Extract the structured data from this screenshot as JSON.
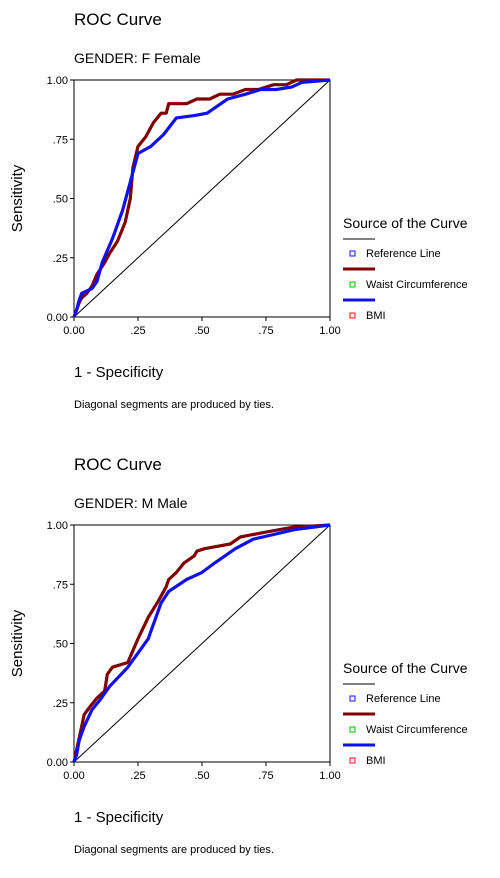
{
  "footnote": "Diagonal segments are produced by ties.",
  "legend_title": "Source of the Curve",
  "colors": {
    "waist": "#800000",
    "bmi": "#1010ee",
    "reference": "#000000"
  },
  "chart_data": [
    {
      "type": "line",
      "title": "ROC Curve",
      "subtitle": "GENDER:  F   Female",
      "xlabel": "1 - Specificity",
      "ylabel": "Sensitivity",
      "xlim": [
        0,
        1
      ],
      "ylim": [
        0,
        1
      ],
      "xticks": [
        "0.00",
        ".25",
        ".50",
        ".75",
        "1.00"
      ],
      "yticks": [
        "0.00",
        ".25",
        ".50",
        ".75",
        "1.00"
      ],
      "legend": [
        "Reference Line",
        "Waist Circumference",
        "BMI"
      ],
      "series": [
        {
          "name": "Waist Circumference",
          "x": [
            0,
            0.01,
            0.02,
            0.03,
            0.05,
            0.07,
            0.09,
            0.12,
            0.14,
            0.17,
            0.2,
            0.22,
            0.23,
            0.25,
            0.28,
            0.31,
            0.34,
            0.36,
            0.37,
            0.4,
            0.44,
            0.48,
            0.53,
            0.57,
            0.62,
            0.67,
            0.72,
            0.78,
            0.83,
            0.87,
            0.9,
            1.0
          ],
          "y": [
            0,
            0.03,
            0.06,
            0.08,
            0.1,
            0.13,
            0.18,
            0.23,
            0.27,
            0.32,
            0.4,
            0.5,
            0.63,
            0.72,
            0.76,
            0.82,
            0.86,
            0.86,
            0.9,
            0.9,
            0.9,
            0.92,
            0.92,
            0.94,
            0.94,
            0.96,
            0.96,
            0.98,
            0.98,
            1.0,
            1.0,
            1.0
          ]
        },
        {
          "name": "BMI",
          "x": [
            0,
            0.01,
            0.02,
            0.03,
            0.05,
            0.07,
            0.09,
            0.11,
            0.15,
            0.19,
            0.22,
            0.25,
            0.3,
            0.35,
            0.4,
            0.47,
            0.52,
            0.6,
            0.67,
            0.73,
            0.79,
            0.85,
            0.89,
            1.0
          ],
          "y": [
            0,
            0.03,
            0.07,
            0.1,
            0.11,
            0.12,
            0.15,
            0.23,
            0.33,
            0.45,
            0.57,
            0.69,
            0.72,
            0.77,
            0.84,
            0.85,
            0.86,
            0.92,
            0.94,
            0.96,
            0.96,
            0.97,
            0.99,
            1.0
          ]
        }
      ]
    },
    {
      "type": "line",
      "title": "ROC Curve",
      "subtitle": "GENDER:  M   Male",
      "xlabel": "1 - Specificity",
      "ylabel": "Sensitivity",
      "xlim": [
        0,
        1
      ],
      "ylim": [
        0,
        1
      ],
      "xticks": [
        "0.00",
        ".25",
        ".50",
        ".75",
        "1.00"
      ],
      "yticks": [
        "0.00",
        ".25",
        ".50",
        ".75",
        "1.00"
      ],
      "legend": [
        "Reference Line",
        "Waist Circumference",
        "BMI"
      ],
      "series": [
        {
          "name": "Waist Circumference",
          "x": [
            0,
            0.01,
            0.02,
            0.03,
            0.04,
            0.06,
            0.09,
            0.12,
            0.13,
            0.15,
            0.21,
            0.25,
            0.29,
            0.33,
            0.36,
            0.37,
            0.4,
            0.43,
            0.47,
            0.48,
            0.51,
            0.56,
            0.61,
            0.65,
            0.75,
            0.85,
            1.0
          ],
          "y": [
            0,
            0.05,
            0.1,
            0.15,
            0.2,
            0.23,
            0.27,
            0.3,
            0.37,
            0.4,
            0.42,
            0.52,
            0.61,
            0.68,
            0.74,
            0.77,
            0.8,
            0.84,
            0.87,
            0.89,
            0.9,
            0.91,
            0.92,
            0.95,
            0.97,
            0.99,
            1.0
          ]
        },
        {
          "name": "BMI",
          "x": [
            0,
            0.01,
            0.02,
            0.04,
            0.07,
            0.1,
            0.14,
            0.21,
            0.29,
            0.34,
            0.37,
            0.44,
            0.5,
            0.55,
            0.63,
            0.7,
            0.78,
            0.86,
            1.0
          ],
          "y": [
            0,
            0.03,
            0.09,
            0.15,
            0.22,
            0.26,
            0.32,
            0.4,
            0.52,
            0.67,
            0.72,
            0.77,
            0.8,
            0.84,
            0.9,
            0.94,
            0.96,
            0.98,
            1.0
          ]
        }
      ]
    }
  ]
}
